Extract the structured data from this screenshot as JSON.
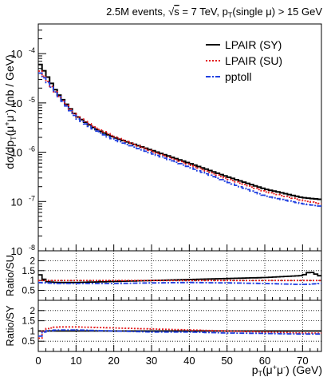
{
  "chart_data": {
    "type": "line",
    "title": "2.5M events, √s = 7 TeV, p_T(single μ) > 15 GeV",
    "title_parts": {
      "prefix": "2.5M events, ",
      "sqrt": "√",
      "s": "s",
      "mid": " = 7 TeV, p",
      "sub": "T",
      "suffix": "(single μ) > 15 GeV"
    },
    "xlabel_parts": {
      "main": "p",
      "sub": "T",
      "paren": "(μ",
      "sup1": "+",
      "mu2": "μ",
      "sup2": "-",
      "close": ")",
      "unit": " (GeV)"
    },
    "ylabel_top_parts": {
      "a": "dσ/dp",
      "sub": "T",
      "b": "(μ",
      "sup1": "+",
      "mu": "μ",
      "sup2": "-",
      "c": ") (nb / GeV)"
    },
    "xlim": [
      0,
      75
    ],
    "x_ticks": [
      0,
      10,
      20,
      30,
      40,
      50,
      60,
      70
    ],
    "x_tick_labels": [
      "0",
      "10",
      "20",
      "30",
      "40",
      "50",
      "60",
      "70"
    ],
    "log_y": true,
    "ylim": [
      1e-08,
      0.0004
    ],
    "y_ticks_labels": [
      {
        "base": "10",
        "exp": "-4",
        "value": 0.0001
      },
      {
        "base": "10",
        "exp": "-5",
        "value": 1e-05
      },
      {
        "base": "10",
        "exp": "-6",
        "value": 1e-06
      },
      {
        "base": "10",
        "exp": "-7",
        "value": 1e-07
      },
      {
        "base": "10",
        "exp": "-8",
        "value": 1e-08
      }
    ],
    "legend": {
      "placement": "top-right",
      "entries": [
        {
          "name": "LPAIR (SY)",
          "color": "#000000",
          "style": "solid"
        },
        {
          "name": "LPAIR (SU)",
          "color": "#e31a1c",
          "style": "dotted"
        },
        {
          "name": "pptoll",
          "color": "#1f3fe0",
          "style": "dashdot"
        }
      ]
    },
    "series": [
      {
        "name": "LPAIR (SY)",
        "color": "#000000",
        "style": "solid",
        "x": [
          0,
          5,
          10,
          15,
          20,
          30,
          40,
          50,
          60,
          70,
          75
        ],
        "values": [
          7e-05,
          1.6e-05,
          5.5e-06,
          3e-06,
          2e-06,
          1.1e-06,
          6e-07,
          3.2e-07,
          1.8e-07,
          1.2e-07,
          1.1e-07
        ]
      },
      {
        "name": "LPAIR (SU)",
        "color": "#e31a1c",
        "style": "dotted",
        "x": [
          0,
          5,
          10,
          15,
          20,
          30,
          40,
          50,
          60,
          70,
          75
        ],
        "values": [
          5e-05,
          1.5e-05,
          5.5e-06,
          3.2e-06,
          2.1e-06,
          1.05e-06,
          5.6e-07,
          2.9e-07,
          1.6e-07,
          1.05e-07,
          9e-08
        ]
      },
      {
        "name": "pptoll",
        "color": "#1f3fe0",
        "style": "dashdot",
        "x": [
          0,
          5,
          10,
          15,
          20,
          30,
          40,
          50,
          60,
          70,
          75
        ],
        "values": [
          4.5e-05,
          1.5e-05,
          5e-06,
          2.8e-06,
          1.8e-06,
          9.5e-07,
          5e-07,
          2.5e-07,
          1.3e-07,
          9e-08,
          8e-08
        ]
      }
    ],
    "ratio_su": {
      "ylabel": "Ratio/SU",
      "ylim": [
        0,
        2.5
      ],
      "tick_labels": [
        {
          "label": "0.5",
          "value": 0.5
        },
        {
          "label": "1",
          "value": 1.0
        },
        {
          "label": "1.5",
          "value": 1.5
        },
        {
          "label": "2",
          "value": 2.0
        }
      ],
      "gridlines": [
        0.5,
        1.0,
        1.5,
        2.0
      ],
      "series": [
        {
          "name": "LPAIR (SY)",
          "color": "#000000",
          "style": "solid",
          "x": [
            0,
            2,
            5,
            10,
            20,
            30,
            40,
            50,
            60,
            65,
            70,
            72,
            75
          ],
          "values": [
            1.4,
            0.95,
            0.9,
            0.9,
            0.95,
            1.0,
            1.05,
            1.1,
            1.15,
            1.2,
            1.25,
            1.45,
            1.2
          ]
        },
        {
          "name": "LPAIR (SU)",
          "color": "#e31a1c",
          "style": "dotted",
          "x": [
            0,
            75
          ],
          "values": [
            1.0,
            1.0
          ]
        },
        {
          "name": "pptoll",
          "color": "#1f3fe0",
          "style": "dashdot",
          "x": [
            0,
            5,
            10,
            20,
            30,
            40,
            50,
            60,
            70,
            75
          ],
          "values": [
            0.9,
            0.85,
            0.85,
            0.85,
            0.88,
            0.9,
            0.88,
            0.85,
            0.8,
            0.85
          ]
        }
      ]
    },
    "ratio_sy": {
      "ylabel": "Ratio/SY",
      "ylim": [
        0,
        2.5
      ],
      "tick_labels": [
        {
          "label": "0.5",
          "value": 0.5
        },
        {
          "label": "1",
          "value": 1.0
        },
        {
          "label": "1.5",
          "value": 1.5
        },
        {
          "label": "2",
          "value": 2.0
        }
      ],
      "gridlines": [
        0.5,
        1.0,
        1.5,
        2.0
      ],
      "series": [
        {
          "name": "LPAIR (SY)",
          "color": "#000000",
          "style": "solid",
          "x": [
            0,
            75
          ],
          "values": [
            1.0,
            1.0
          ]
        },
        {
          "name": "LPAIR (SU)",
          "color": "#e31a1c",
          "style": "dotted",
          "x": [
            0,
            1,
            2,
            5,
            10,
            20,
            30,
            40,
            50,
            60,
            70,
            75
          ],
          "values": [
            0.4,
            0.9,
            1.1,
            1.2,
            1.2,
            1.15,
            1.1,
            1.05,
            1.0,
            0.95,
            0.9,
            0.9
          ]
        },
        {
          "name": "pptoll",
          "color": "#1f3fe0",
          "style": "dashdot",
          "x": [
            0,
            1,
            2,
            5,
            10,
            20,
            30,
            40,
            50,
            60,
            70,
            75
          ],
          "values": [
            0.6,
            0.9,
            1.0,
            1.05,
            1.05,
            1.0,
            0.95,
            0.95,
            0.9,
            0.88,
            0.85,
            0.85
          ]
        }
      ]
    }
  }
}
